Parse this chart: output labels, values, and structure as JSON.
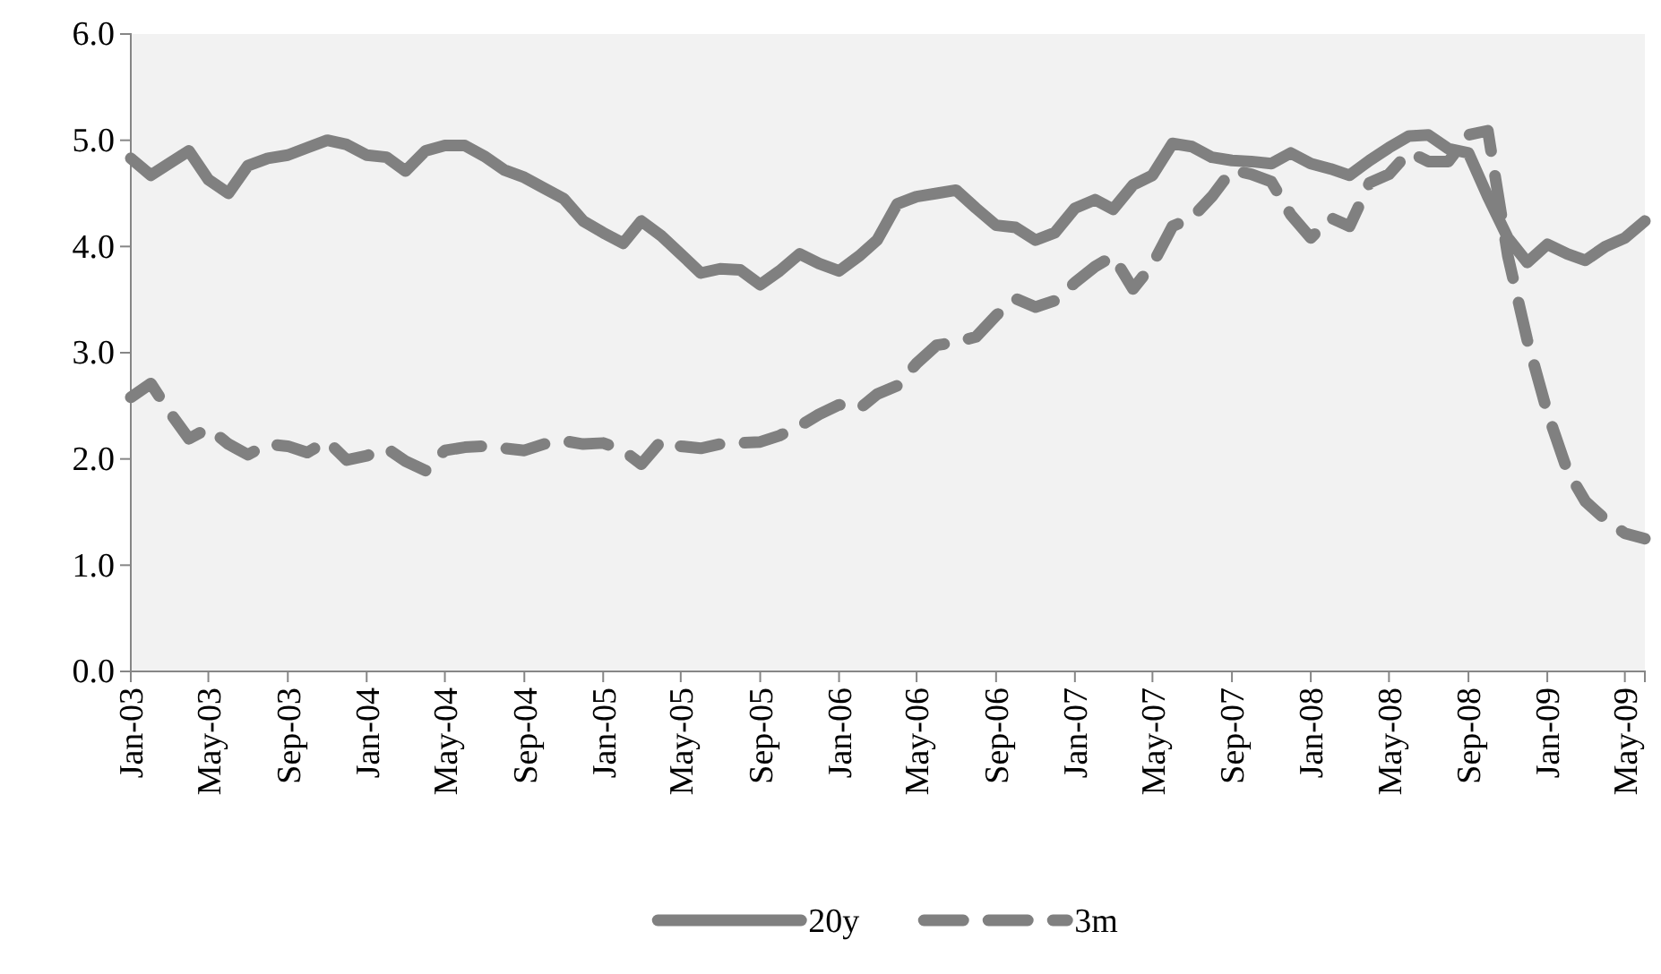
{
  "chart_data": {
    "type": "line",
    "x": [
      "2003-01",
      "2003-02",
      "2003-03",
      "2003-04",
      "2003-05",
      "2003-06",
      "2003-07",
      "2003-08",
      "2003-09",
      "2003-10",
      "2003-11",
      "2003-12",
      "2004-01",
      "2004-02",
      "2004-03",
      "2004-04",
      "2004-05",
      "2004-06",
      "2004-07",
      "2004-08",
      "2004-09",
      "2004-10",
      "2004-11",
      "2004-12",
      "2005-01",
      "2005-02",
      "2005-03",
      "2005-04",
      "2005-05",
      "2005-06",
      "2005-07",
      "2005-08",
      "2005-09",
      "2005-10",
      "2005-11",
      "2005-12",
      "2006-01",
      "2006-02",
      "2006-03",
      "2006-04",
      "2006-05",
      "2006-06",
      "2006-07",
      "2006-08",
      "2006-09",
      "2006-10",
      "2006-11",
      "2006-12",
      "2007-01",
      "2007-02",
      "2007-03",
      "2007-04",
      "2007-05",
      "2007-06",
      "2007-07",
      "2007-08",
      "2007-09",
      "2007-10",
      "2007-11",
      "2007-12",
      "2008-01",
      "2008-02",
      "2008-03",
      "2008-04",
      "2008-05",
      "2008-06",
      "2008-07",
      "2008-08",
      "2008-09",
      "2008-10",
      "2008-11",
      "2008-12",
      "2009-01",
      "2009-02",
      "2009-03",
      "2009-04",
      "2009-05",
      "2009-06"
    ],
    "series": [
      {
        "name": "20y",
        "color": "#808080",
        "line_style": "solid",
        "values": [
          4.83,
          4.67,
          4.78,
          4.9,
          4.63,
          4.5,
          4.76,
          4.83,
          4.86,
          4.93,
          5.0,
          4.96,
          4.86,
          4.84,
          4.71,
          4.9,
          4.95,
          4.95,
          4.85,
          4.72,
          4.65,
          4.55,
          4.45,
          4.24,
          4.13,
          4.03,
          4.24,
          4.1,
          3.93,
          3.75,
          3.79,
          3.78,
          3.64,
          3.77,
          3.93,
          3.84,
          3.77,
          3.91,
          4.06,
          4.4,
          4.47,
          4.5,
          4.53,
          4.36,
          4.2,
          4.18,
          4.06,
          4.13,
          4.36,
          4.44,
          4.35,
          4.58,
          4.67,
          4.97,
          4.94,
          4.84,
          4.81,
          4.8,
          4.78,
          4.88,
          4.78,
          4.73,
          4.67,
          4.81,
          4.93,
          5.04,
          5.05,
          4.92,
          4.88,
          4.47,
          4.08,
          3.85,
          4.02,
          3.93,
          3.87,
          4.0,
          4.08,
          4.24
        ]
      },
      {
        "name": "3m",
        "color": "#808080",
        "line_style": "dashed",
        "values": [
          2.58,
          2.71,
          2.45,
          2.19,
          2.29,
          2.14,
          2.04,
          2.14,
          2.12,
          2.06,
          2.17,
          1.99,
          2.03,
          2.1,
          1.98,
          1.89,
          2.08,
          2.11,
          2.12,
          2.1,
          2.08,
          2.14,
          2.17,
          2.14,
          2.15,
          2.08,
          1.95,
          2.17,
          2.12,
          2.1,
          2.14,
          2.15,
          2.16,
          2.22,
          2.31,
          2.42,
          2.51,
          2.47,
          2.61,
          2.69,
          2.9,
          3.07,
          3.1,
          3.15,
          3.35,
          3.51,
          3.43,
          3.49,
          3.66,
          3.81,
          3.91,
          3.6,
          3.83,
          4.19,
          4.27,
          4.47,
          4.72,
          4.68,
          4.61,
          4.3,
          4.08,
          4.27,
          4.19,
          4.6,
          4.68,
          4.89,
          4.8,
          4.8,
          5.05,
          5.09,
          3.91,
          3.12,
          2.44,
          1.89,
          1.6,
          1.43,
          1.3,
          1.25
        ]
      }
    ],
    "xlim": [
      "2003-01",
      "2009-06"
    ],
    "xticks": [
      {
        "value": "2003-01",
        "label": "Jan-03"
      },
      {
        "value": "2003-05",
        "label": "May-03"
      },
      {
        "value": "2003-09",
        "label": "Sep-03"
      },
      {
        "value": "2004-01",
        "label": "Jan-04"
      },
      {
        "value": "2004-05",
        "label": "May-04"
      },
      {
        "value": "2004-09",
        "label": "Sep-04"
      },
      {
        "value": "2005-01",
        "label": "Jan-05"
      },
      {
        "value": "2005-05",
        "label": "May-05"
      },
      {
        "value": "2005-09",
        "label": "Sep-05"
      },
      {
        "value": "2006-01",
        "label": "Jan-06"
      },
      {
        "value": "2006-05",
        "label": "May-06"
      },
      {
        "value": "2006-09",
        "label": "Sep-06"
      },
      {
        "value": "2007-01",
        "label": "Jan-07"
      },
      {
        "value": "2007-05",
        "label": "May-07"
      },
      {
        "value": "2007-09",
        "label": "Sep-07"
      },
      {
        "value": "2008-01",
        "label": "Jan-08"
      },
      {
        "value": "2008-05",
        "label": "May-08"
      },
      {
        "value": "2008-09",
        "label": "Sep-08"
      },
      {
        "value": "2009-01",
        "label": "Jan-09"
      },
      {
        "value": "2009-05",
        "label": "May-09"
      }
    ],
    "ylim": [
      0,
      6
    ],
    "yticks": [
      {
        "value": 0,
        "label": "0.0"
      },
      {
        "value": 1,
        "label": "1.0"
      },
      {
        "value": 2,
        "label": "2.0"
      },
      {
        "value": 3,
        "label": "3.0"
      },
      {
        "value": 4,
        "label": "4.0"
      },
      {
        "value": 5,
        "label": "5.0"
      },
      {
        "value": 6,
        "label": "6.0"
      }
    ],
    "grid": false,
    "legend": "bottom",
    "marker": "none"
  }
}
